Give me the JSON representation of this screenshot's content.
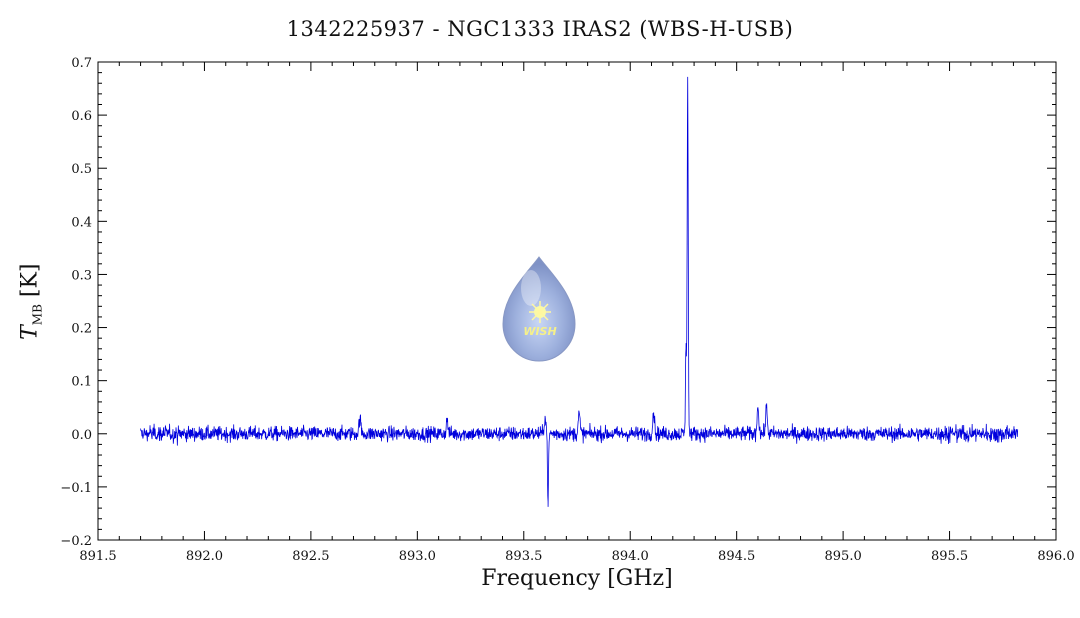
{
  "chart_data": {
    "type": "line",
    "title": "1342225937 - NGC1333 IRAS2 (WBS-H-USB)",
    "xlabel": "Frequency [GHz]",
    "ylabel_symbol": "T",
    "ylabel_subscript": "MB",
    "ylabel_unit": "[K]",
    "xlim": [
      891.5,
      896.0
    ],
    "ylim": [
      -0.2,
      0.7
    ],
    "x_ticks": [
      891.5,
      892.0,
      892.5,
      893.0,
      893.5,
      894.0,
      894.5,
      895.0,
      895.5,
      896.0
    ],
    "x_tick_labels": [
      "891.5",
      "892.0",
      "892.5",
      "893.0",
      "893.5",
      "894.0",
      "894.5",
      "895.0",
      "895.5",
      "896.0"
    ],
    "y_ticks": [
      -0.2,
      -0.1,
      0.0,
      0.1,
      0.2,
      0.3,
      0.4,
      0.5,
      0.6,
      0.7
    ],
    "y_tick_labels": [
      "−0.2",
      "−0.1",
      "0.0",
      "0.1",
      "0.2",
      "0.3",
      "0.4",
      "0.5",
      "0.6",
      "0.7"
    ],
    "series": [
      {
        "color": "#0000dd",
        "x_range": [
          891.7,
          895.82
        ],
        "noise_rms": 0.007,
        "baseline": 0.0,
        "features": [
          {
            "x": 892.73,
            "y": 0.03
          },
          {
            "x": 893.14,
            "y": 0.025
          },
          {
            "x": 893.6,
            "y": 0.032
          },
          {
            "x": 893.614,
            "y": -0.128
          },
          {
            "x": 893.76,
            "y": 0.038
          },
          {
            "x": 894.11,
            "y": 0.04
          },
          {
            "x": 894.262,
            "y": 0.16
          },
          {
            "x": 894.27,
            "y": 0.672
          },
          {
            "x": 894.6,
            "y": 0.052
          },
          {
            "x": 894.64,
            "y": 0.048
          }
        ]
      }
    ],
    "grid": false
  },
  "logo": {
    "text": "WISH",
    "fill": "#9aaedc",
    "text_color": "#f5f08a"
  }
}
